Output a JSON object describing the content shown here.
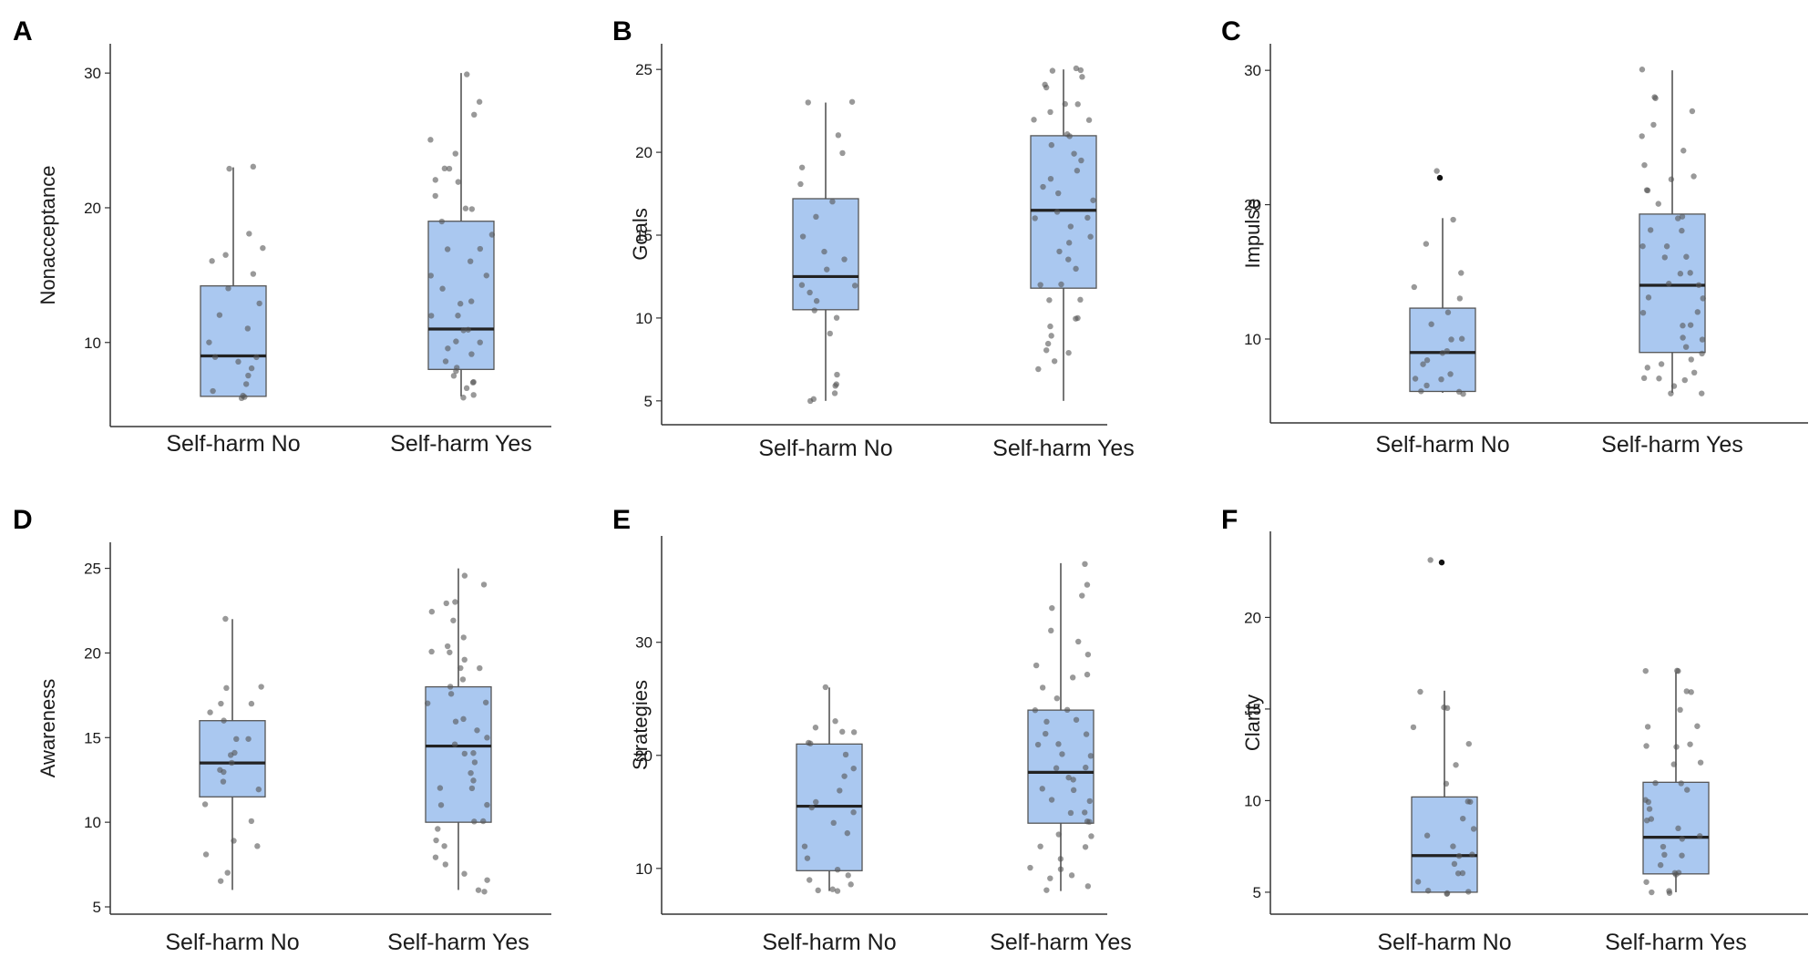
{
  "colors": {
    "box_fill": "#aac8f0",
    "box_stroke": "#555555",
    "point": "#555555"
  },
  "chart_data": [
    {
      "panel": "A",
      "type": "box",
      "ylabel": "Nonacceptance",
      "ylim": [
        4.3,
        31.5
      ],
      "yticks": [
        10,
        20,
        30
      ],
      "categories": [
        "Self-harm No",
        "Self-harm Yes"
      ],
      "boxes": [
        {
          "q1": 6,
          "median": 9,
          "q3": 14.2,
          "whisker_low": 6,
          "whisker_high": 23,
          "points": [
            6,
            6,
            6,
            6.5,
            7,
            7.5,
            8,
            8.5,
            9,
            9,
            10,
            11,
            12,
            13,
            14,
            15,
            16,
            16.5,
            17,
            18,
            23,
            23
          ]
        },
        {
          "q1": 8,
          "median": 11,
          "q3": 19,
          "whisker_low": 6,
          "whisker_high": 30,
          "points": [
            6,
            6,
            6.5,
            7,
            7,
            7.5,
            8,
            8,
            8.5,
            9,
            9.5,
            10,
            10,
            11,
            11,
            12,
            12,
            13,
            13,
            14,
            15,
            15,
            16,
            17,
            17,
            18,
            19,
            20,
            20,
            21,
            22,
            22,
            23,
            23,
            24,
            25,
            27,
            28,
            30
          ]
        }
      ]
    },
    {
      "panel": "B",
      "type": "box",
      "ylabel": "Goals",
      "ylim": [
        4,
        26
      ],
      "yticks": [
        5,
        10,
        15,
        20,
        25
      ],
      "categories": [
        "Self-harm No",
        "Self-harm Yes"
      ],
      "boxes": [
        {
          "q1": 10.5,
          "median": 12.5,
          "q3": 17.2,
          "whisker_low": 5,
          "whisker_high": 23,
          "points": [
            5,
            5,
            5.5,
            6,
            6,
            6.5,
            9,
            10,
            10.5,
            11,
            11.5,
            12,
            12,
            13,
            13.5,
            14,
            15,
            16,
            17,
            18,
            19,
            20,
            21,
            23,
            23
          ]
        },
        {
          "q1": 11.8,
          "median": 16.5,
          "q3": 21,
          "whisker_low": 5,
          "whisker_high": 25,
          "points": [
            7,
            7.5,
            8,
            8,
            8.5,
            9,
            9.5,
            10,
            10,
            11,
            11,
            12,
            12,
            13,
            13.5,
            14,
            14.5,
            15,
            15.5,
            16,
            16,
            16.5,
            17,
            17.5,
            18,
            18.5,
            19,
            19.5,
            20,
            20.5,
            21,
            21,
            22,
            22,
            22.5,
            23,
            23,
            24,
            24,
            24.5,
            25,
            25,
            25
          ]
        }
      ]
    },
    {
      "panel": "C",
      "type": "box",
      "ylabel": "Impulse",
      "ylim": [
        4.3,
        31.3
      ],
      "yticks": [
        10,
        20,
        30
      ],
      "categories": [
        "Self-harm No",
        "Self-harm Yes"
      ],
      "boxes": [
        {
          "q1": 6.1,
          "median": 9,
          "q3": 12.3,
          "whisker_low": 6,
          "whisker_high": 19,
          "outliers": [
            22
          ],
          "points": [
            6,
            6,
            6,
            6.5,
            7,
            7,
            7.5,
            8,
            8.5,
            9,
            9,
            10,
            10,
            11,
            12,
            13,
            14,
            15,
            17,
            19,
            22.5
          ]
        },
        {
          "q1": 9,
          "median": 14,
          "q3": 19.3,
          "whisker_low": 6,
          "whisker_high": 30,
          "points": [
            6,
            6,
            6.5,
            7,
            7,
            7,
            7.5,
            8,
            8,
            8.5,
            9,
            9.5,
            10,
            10,
            11,
            11,
            12,
            12,
            13,
            13,
            14,
            14,
            15,
            15,
            16,
            16,
            17,
            17,
            18,
            18,
            19,
            19,
            20,
            21,
            21,
            22,
            22,
            23,
            24,
            25,
            26,
            27,
            28,
            28,
            30
          ]
        }
      ]
    },
    {
      "panel": "D",
      "type": "box",
      "ylabel": "Awareness",
      "ylim": [
        5,
        26
      ],
      "yticks": [
        5,
        10,
        15,
        20,
        25
      ],
      "categories": [
        "Self-harm No",
        "Self-harm Yes"
      ],
      "boxes": [
        {
          "q1": 11.5,
          "median": 13.5,
          "q3": 16,
          "whisker_low": 6,
          "whisker_high": 22,
          "points": [
            6.5,
            7,
            8,
            8.5,
            9,
            10,
            11,
            12,
            12.5,
            13,
            13,
            13.5,
            14,
            14,
            15,
            15,
            16,
            16.5,
            17,
            17,
            18,
            18,
            22
          ]
        },
        {
          "q1": 10,
          "median": 14.5,
          "q3": 18,
          "whisker_low": 6,
          "whisker_high": 25,
          "points": [
            6,
            6,
            6.5,
            7,
            7.5,
            8,
            8.5,
            9,
            9.5,
            10,
            10,
            11,
            11,
            12,
            12,
            12.5,
            13,
            13.5,
            14,
            14,
            14.5,
            15,
            15.5,
            16,
            16,
            17,
            17,
            17.5,
            18,
            18.5,
            19,
            19,
            19.5,
            20,
            20,
            20.5,
            21,
            22,
            22.5,
            23,
            23,
            24,
            24.5
          ]
        }
      ]
    },
    {
      "panel": "E",
      "type": "box",
      "ylabel": "Strategies",
      "ylim": [
        6.6,
        38.6
      ],
      "yticks": [
        10,
        20,
        30
      ],
      "categories": [
        "Self-harm No",
        "Self-harm Yes"
      ],
      "boxes": [
        {
          "q1": 9.8,
          "median": 15.5,
          "q3": 21,
          "whisker_low": 8,
          "whisker_high": 26,
          "points": [
            8,
            8,
            8,
            8.5,
            9,
            9.5,
            10,
            11,
            12,
            13,
            14,
            15,
            15.5,
            16,
            17,
            18,
            19,
            20,
            21,
            21,
            22,
            22,
            22.5,
            23,
            26
          ]
        },
        {
          "q1": 14,
          "median": 18.5,
          "q3": 24,
          "whisker_low": 8,
          "whisker_high": 37,
          "points": [
            8,
            8.5,
            9,
            9.5,
            10,
            10,
            11,
            12,
            12,
            13,
            13,
            14,
            14,
            15,
            15,
            16,
            16,
            17,
            17,
            18,
            18,
            19,
            19,
            20,
            20,
            21,
            21,
            22,
            22,
            23,
            23,
            24,
            24,
            25,
            26,
            27,
            27,
            28,
            29,
            30,
            31,
            33,
            34,
            35,
            37
          ]
        }
      ]
    },
    {
      "panel": "F",
      "type": "box",
      "ylabel": "Clarity",
      "ylim": [
        4.2,
        24.2
      ],
      "yticks": [
        5,
        10,
        15,
        20
      ],
      "categories": [
        "Self-harm No",
        "Self-harm Yes"
      ],
      "boxes": [
        {
          "q1": 5,
          "median": 7,
          "q3": 10.2,
          "whisker_low": 5,
          "whisker_high": 16,
          "outliers": [
            23
          ],
          "points": [
            5,
            5,
            5,
            5,
            5.5,
            6,
            6,
            6.5,
            7,
            7,
            7.5,
            8,
            8.5,
            9,
            10,
            10,
            11,
            12,
            13,
            14,
            15,
            15,
            16,
            23.2
          ]
        },
        {
          "q1": 6,
          "median": 8,
          "q3": 11,
          "whisker_low": 5,
          "whisker_high": 17,
          "points": [
            5,
            5,
            5,
            5.5,
            6,
            6,
            6,
            6.5,
            7,
            7,
            7.5,
            8,
            8,
            8.5,
            9,
            9,
            9.5,
            10,
            10,
            10.5,
            11,
            11,
            12,
            12,
            13,
            13,
            13,
            14,
            14,
            15,
            16,
            16,
            17,
            17,
            17
          ]
        }
      ]
    }
  ]
}
